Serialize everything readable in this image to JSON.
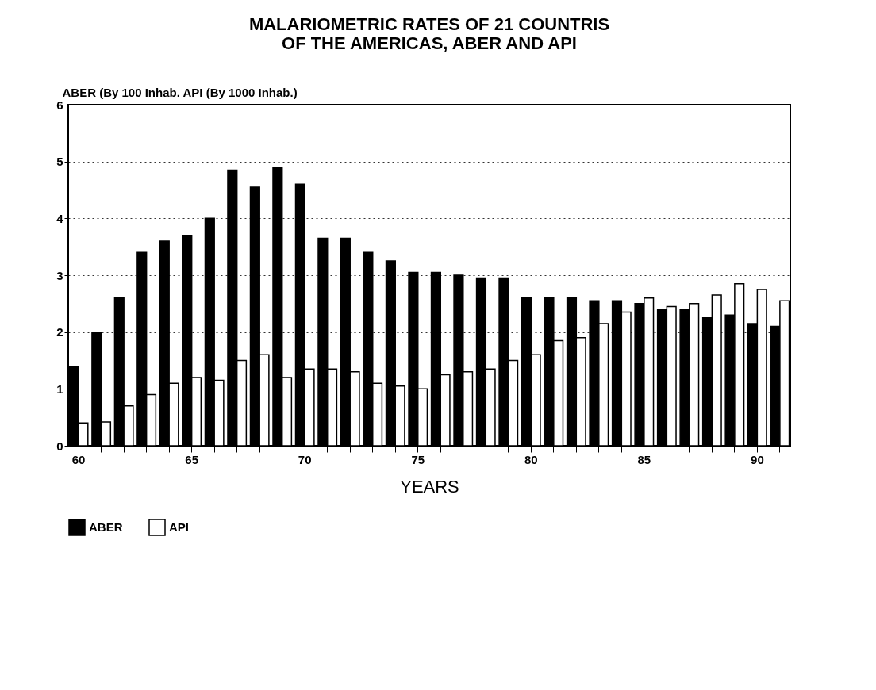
{
  "chart_data": {
    "type": "bar",
    "title": [
      "MALARIOMETRIC RATES OF 21 COUNTRIS",
      "OF THE AMERICAS, ABER AND API"
    ],
    "ylabel": "ABER (By 100 Inhab. API (By 1000 Inhab.)",
    "xlabel": "YEARS",
    "categories": [
      "60",
      null,
      null,
      null,
      null,
      "65",
      null,
      null,
      null,
      null,
      "70",
      null,
      null,
      null,
      null,
      "75",
      null,
      null,
      null,
      null,
      "80",
      null,
      null,
      null,
      null,
      "85",
      null,
      null,
      null,
      null,
      "90",
      null
    ],
    "series": [
      {
        "name": "ABER",
        "color": "#000000",
        "values": [
          1.4,
          2.0,
          2.6,
          3.4,
          3.6,
          3.7,
          4.0,
          4.85,
          4.55,
          4.9,
          4.6,
          3.65,
          3.65,
          3.4,
          3.25,
          3.05,
          3.05,
          3.0,
          2.95,
          2.95,
          2.6,
          2.6,
          2.6,
          2.55,
          2.55,
          2.5,
          2.4,
          2.4,
          2.25,
          2.3,
          2.15,
          2.1
        ]
      },
      {
        "name": "API",
        "color": "#ffffff",
        "values": [
          0.4,
          0.42,
          0.7,
          0.9,
          1.1,
          1.2,
          1.15,
          1.5,
          1.6,
          1.2,
          1.35,
          1.35,
          1.3,
          1.1,
          1.05,
          1.0,
          1.25,
          1.3,
          1.35,
          1.5,
          1.6,
          1.85,
          1.9,
          2.15,
          2.35,
          2.6,
          2.45,
          2.5,
          2.65,
          2.85,
          2.75,
          2.55
        ]
      }
    ],
    "ylim": [
      0,
      6
    ],
    "yticks": [
      0,
      1,
      2,
      3,
      4,
      5,
      6
    ],
    "grid": "y",
    "legend": "bottom"
  }
}
